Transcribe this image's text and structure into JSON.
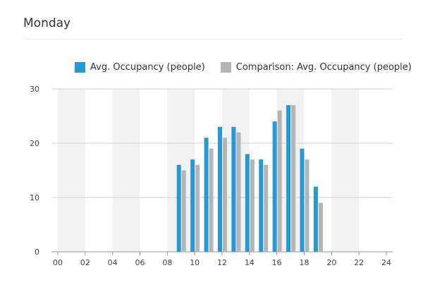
{
  "panel": {
    "title": "Monday"
  },
  "colors": {
    "primary": "#239ad6",
    "comparison": "#b5b5b5",
    "band": "#f2f2f2",
    "gridline": "#d0d0d0",
    "axis": "#999999"
  },
  "chart_data": {
    "type": "bar",
    "title": "Monday",
    "xlabel": "",
    "ylabel": "",
    "xlim": [
      0,
      24
    ],
    "ylim": [
      0,
      30
    ],
    "yticks": [
      0,
      10,
      20,
      30
    ],
    "xticks": [
      "00",
      "02",
      "04",
      "06",
      "08",
      "10",
      "12",
      "14",
      "16",
      "18",
      "20",
      "22",
      "24"
    ],
    "grid": true,
    "legend_position": "top",
    "categories": [
      9,
      10,
      11,
      12,
      13,
      14,
      15,
      16,
      17,
      18,
      19
    ],
    "series": [
      {
        "name": "Avg. Occupancy (people)",
        "color": "#239ad6",
        "values": [
          16,
          17,
          21,
          23,
          23,
          18,
          17,
          24,
          27,
          19,
          12
        ]
      },
      {
        "name": "Comparison: Avg. Occupancy (people)",
        "color": "#b5b5b5",
        "values": [
          15,
          16,
          19,
          21,
          22,
          17,
          16,
          26,
          27,
          17,
          9
        ]
      }
    ]
  }
}
